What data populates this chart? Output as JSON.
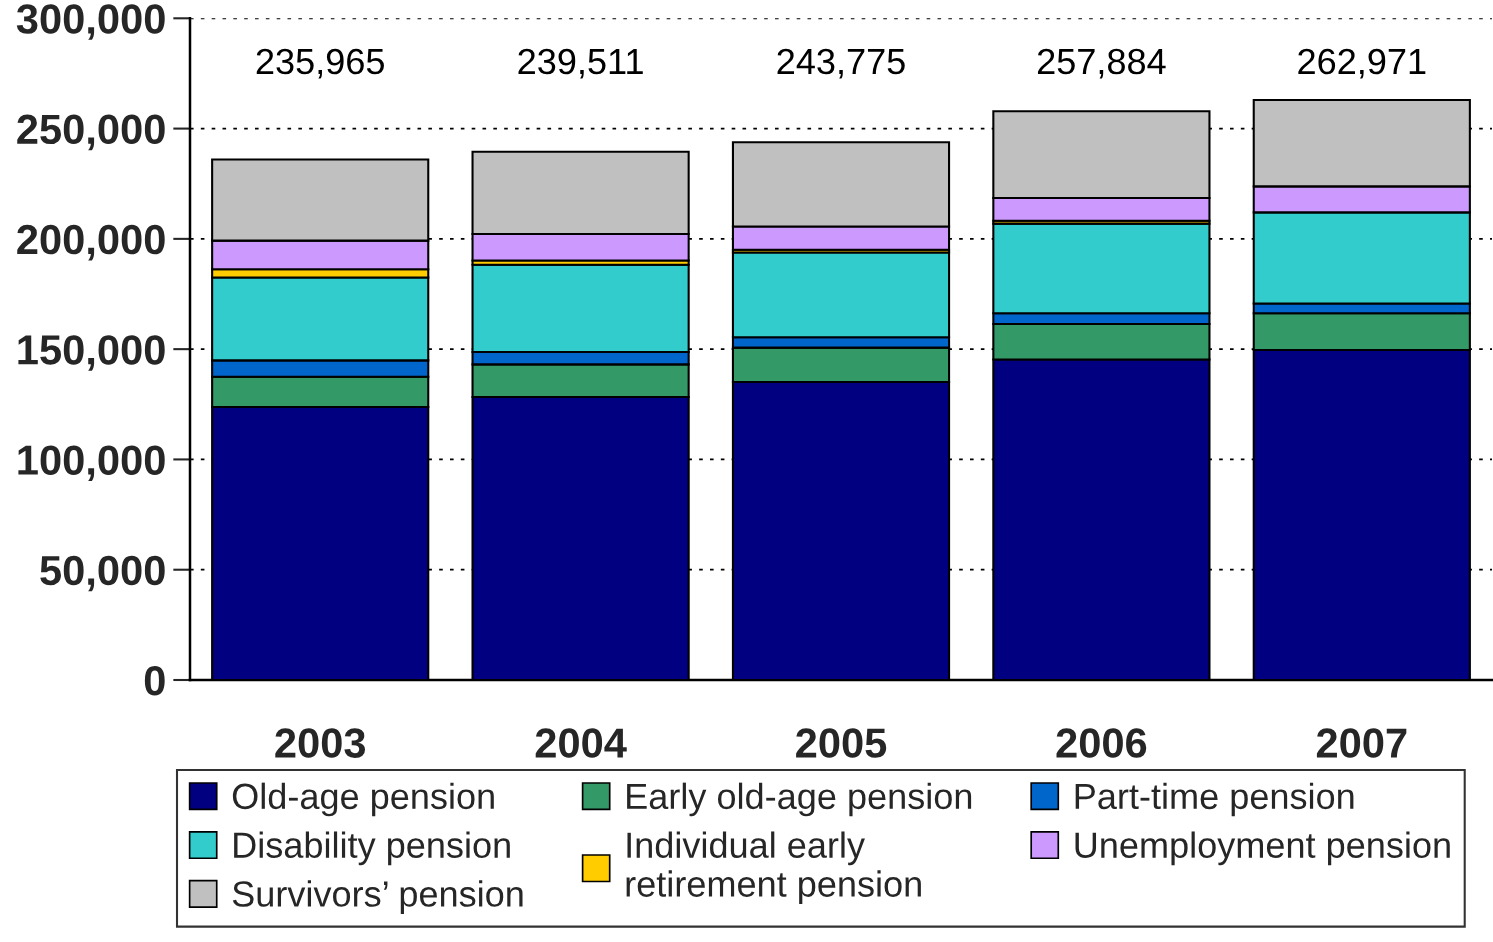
{
  "chart_data": {
    "type": "bar",
    "stacked": true,
    "categories": [
      "2003",
      "2004",
      "2005",
      "2006",
      "2007"
    ],
    "series": [
      {
        "name": "Old-age pension",
        "color": "#000080",
        "values": [
          123800,
          128300,
          135100,
          145300,
          149600
        ]
      },
      {
        "name": "Early old-age pension",
        "color": "#339966",
        "values": [
          13700,
          14800,
          15600,
          16100,
          16700
        ]
      },
      {
        "name": "Part-time pension",
        "color": "#0066cc",
        "values": [
          7400,
          5600,
          4700,
          4900,
          4400
        ]
      },
      {
        "name": "Disability pension",
        "color": "#33cccc",
        "values": [
          37600,
          39600,
          38400,
          40600,
          41300
        ]
      },
      {
        "name": "Individual early\nretirement pension",
        "color": "#ffcc00",
        "values": [
          3700,
          1900,
          1300,
          1300,
          null
        ]
      },
      {
        "name": "Unemployment pension",
        "color": "#cc99ff",
        "values": [
          13000,
          12000,
          10500,
          10300,
          11800
        ]
      },
      {
        "name": "Survivors’ pension",
        "color": "#c0c0c0",
        "values": [
          36765,
          37311,
          38175,
          39384,
          39171
        ]
      }
    ],
    "totals": [
      "235,965",
      "239,511",
      "243,775",
      "257,884",
      "262,971"
    ],
    "ylim": [
      0,
      300000
    ],
    "yticks": [
      0,
      {
        "value": 50000,
        "label": "50,000"
      },
      {
        "value": 100000,
        "label": "100,000"
      },
      {
        "value": 150000,
        "label": "150,000"
      },
      {
        "value": 200000,
        "label": "200,000"
      },
      {
        "value": 250000,
        "label": "250,000"
      },
      {
        "value": 300000,
        "label": "300,000"
      }
    ],
    "grid": "y",
    "legend": "bottom"
  }
}
